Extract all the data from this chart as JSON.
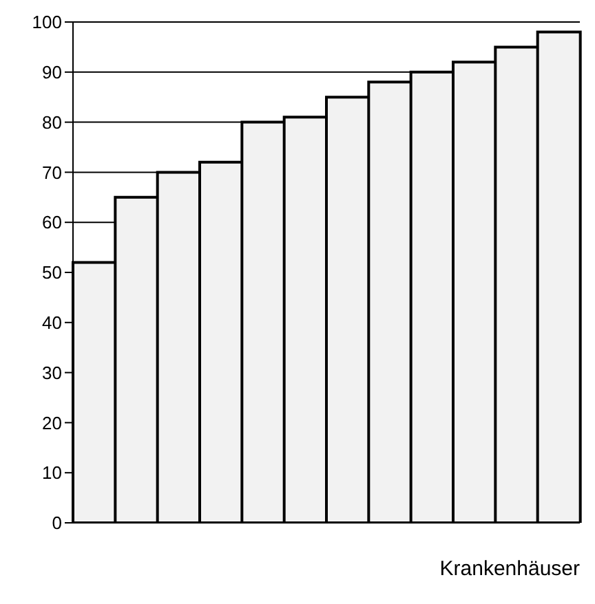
{
  "chart_data": {
    "type": "bar",
    "xlabel": "Krankenhäuser",
    "categories": [
      null,
      null,
      null,
      null,
      null,
      null,
      null,
      null,
      null,
      null,
      null,
      null
    ],
    "values": [
      52,
      65,
      70,
      72,
      80,
      81,
      85,
      88,
      90,
      92,
      95,
      98
    ],
    "color": "#f2f2f2",
    "ylim": [
      0,
      100
    ],
    "yticks": [
      0,
      10,
      20,
      30,
      40,
      50,
      60,
      70,
      80,
      90,
      100
    ],
    "grid": "y"
  }
}
